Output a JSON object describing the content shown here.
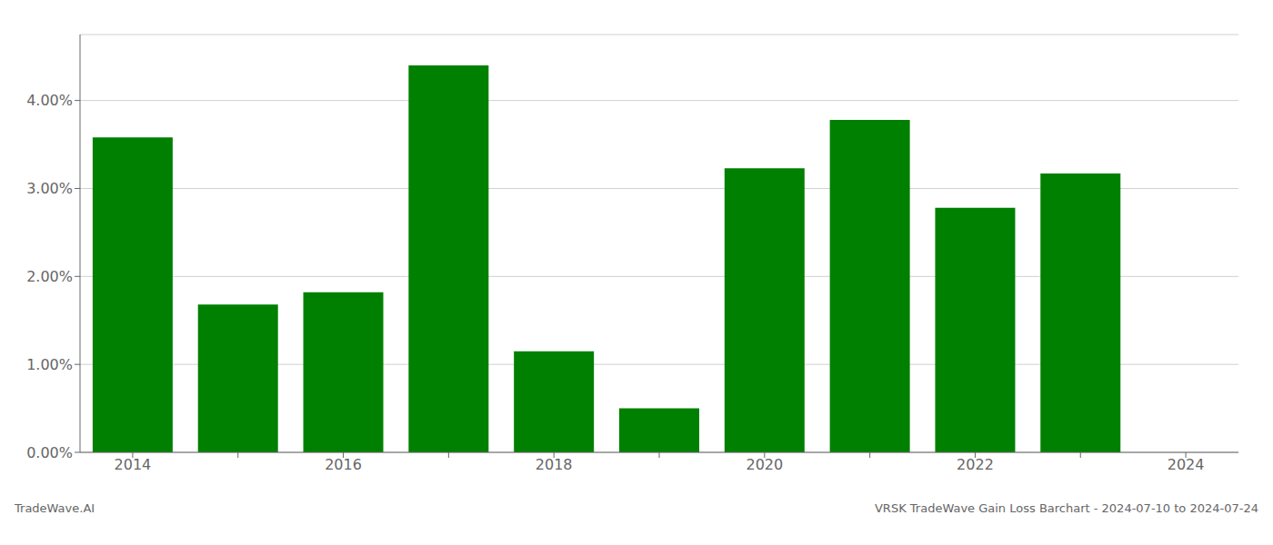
{
  "chart_data": {
    "type": "bar",
    "categories": [
      "2014",
      null,
      "2016",
      null,
      "2018",
      null,
      "2020",
      null,
      "2022",
      null,
      "2024"
    ],
    "values": [
      0.0358,
      0.0168,
      0.0182,
      0.044,
      0.0115,
      0.005,
      0.0323,
      0.0378,
      0.0278,
      0.0317,
      null
    ],
    "color": "#008000",
    "ylim": [
      0,
      0.0475
    ],
    "yticks": [
      {
        "value": 0.0,
        "label": "0.00%"
      },
      {
        "value": 0.01,
        "label": "1.00%"
      },
      {
        "value": 0.02,
        "label": "2.00%"
      },
      {
        "value": 0.03,
        "label": "3.00%"
      },
      {
        "value": 0.04,
        "label": "4.00%"
      }
    ],
    "grid": true,
    "annotations": [
      "TradeWave.AI",
      "VRSK TradeWave Gain Loss Barchart - 2024-07-10 to 2024-07-24"
    ]
  }
}
